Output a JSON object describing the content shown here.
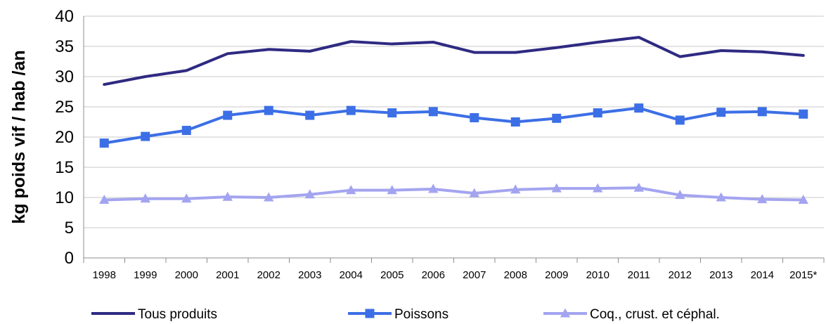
{
  "chart_data": {
    "type": "line",
    "ylabel": "kg poids vif / hab /an",
    "xlabel": "",
    "ylim": [
      0,
      40
    ],
    "yticks": [
      0,
      5,
      10,
      15,
      20,
      25,
      30,
      35,
      40
    ],
    "grid": true,
    "legend_position": "bottom",
    "x": [
      "1998",
      "1999",
      "2000",
      "2001",
      "2002",
      "2003",
      "2004",
      "2005",
      "2006",
      "2007",
      "2008",
      "2009",
      "2010",
      "2011",
      "2012",
      "2013",
      "2014",
      "2015*"
    ],
    "series": [
      {
        "name": "Tous produits",
        "color": "#2e2a82",
        "marker": "none",
        "values": [
          28.7,
          30.0,
          31.0,
          33.8,
          34.5,
          34.2,
          35.8,
          35.4,
          35.7,
          34.0,
          34.0,
          34.8,
          35.7,
          36.5,
          33.3,
          34.3,
          34.1,
          33.5
        ]
      },
      {
        "name": "Poissons",
        "color": "#3c6fe6",
        "marker": "square",
        "values": [
          19.0,
          20.1,
          21.1,
          23.6,
          24.4,
          23.6,
          24.4,
          24.0,
          24.2,
          23.2,
          22.5,
          23.1,
          24.0,
          24.8,
          22.8,
          24.1,
          24.2,
          23.8
        ]
      },
      {
        "name": "Coq., crust. et céphal.",
        "color": "#a3a4f0",
        "marker": "triangle",
        "values": [
          9.6,
          9.8,
          9.8,
          10.1,
          10.0,
          10.5,
          11.2,
          11.2,
          11.4,
          10.7,
          11.3,
          11.5,
          11.5,
          11.6,
          10.4,
          10.0,
          9.7,
          9.6
        ]
      }
    ]
  }
}
